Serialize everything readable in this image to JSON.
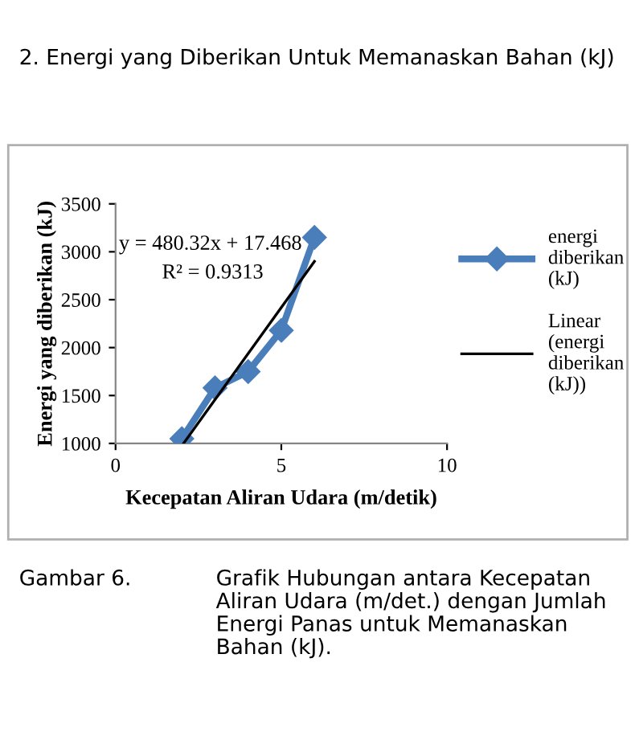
{
  "chart_data": {
    "type": "line",
    "title": "2. Energi yang Diberikan Untuk Memanaskan Bahan (kJ)",
    "xlabel": "Kecepatan Aliran Udara (m/detik)",
    "ylabel": "Energi yang diberikan (kJ)",
    "x": [
      2,
      3,
      4,
      5,
      6
    ],
    "series": [
      {
        "name": "energi diberikan (kJ)",
        "color": "#4a7ebb",
        "values": [
          1050,
          1580,
          1750,
          2180,
          3150
        ],
        "marker": "diamond"
      },
      {
        "name": "Linear (energi diberikan (kJ))",
        "color": "#000000",
        "x": [
          2.05,
          6
        ],
        "values": [
          1000,
          2900
        ],
        "marker": "none"
      }
    ],
    "xlim": [
      0,
      10
    ],
    "ylim": [
      1000,
      3500
    ],
    "xticks": [
      0,
      5,
      10
    ],
    "yticks": [
      1000,
      1500,
      2000,
      2500,
      3000,
      3500
    ],
    "grid": false,
    "legend": "right",
    "annotations": [
      "y = 480.32x + 17.468",
      "R² = 0.9313",
      "Gambar 6.",
      "Grafik Hubungan antara Kecepatan Aliran Udara (m/det.) dengan Jumlah Energi Panas untuk Memanaskan Bahan (kJ)."
    ]
  }
}
